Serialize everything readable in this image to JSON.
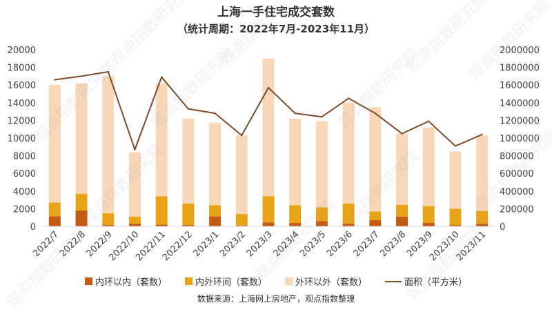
{
  "chart_data": {
    "type": "bar",
    "title": "上海一手住宅成交套数",
    "subtitle": "（统计周期：2022年7月-2023年11月）",
    "categories": [
      "2022/7",
      "2022/8",
      "2022/9",
      "2022/10",
      "2022/11",
      "2022/12",
      "2023/1",
      "2023/2",
      "2023/3",
      "2023/4",
      "2023/5",
      "2023/6",
      "2023/7",
      "2023/8",
      "2023/9",
      "2023/10",
      "2023/11"
    ],
    "stacked": true,
    "series": [
      {
        "name": "内环以内（套数）",
        "color": "#C55A11",
        "axis": "left",
        "values": [
          1150,
          1800,
          150,
          300,
          200,
          150,
          1150,
          100,
          450,
          400,
          600,
          300,
          700,
          1100,
          400,
          150,
          300
        ]
      },
      {
        "name": "内外环间（套数）",
        "color": "#E8A317",
        "axis": "left",
        "values": [
          1550,
          1900,
          1350,
          800,
          3200,
          2450,
          1250,
          1300,
          2950,
          2000,
          1550,
          2300,
          1000,
          1350,
          1900,
          1850,
          1450
        ]
      },
      {
        "name": "外环以外（套数）",
        "color": "#F7D7B8",
        "axis": "left",
        "values": [
          13300,
          12500,
          15500,
          7300,
          12800,
          9600,
          9350,
          8900,
          15600,
          9800,
          9750,
          11400,
          11800,
          8050,
          8900,
          6500,
          8550
        ]
      }
    ],
    "line": {
      "name": "面积（平方米）",
      "color": "#7B4B2A",
      "axis": "right",
      "values": [
        1660000,
        1700000,
        1750000,
        870000,
        1690000,
        1330000,
        1280000,
        1030000,
        1570000,
        1280000,
        1240000,
        1450000,
        1280000,
        1050000,
        1190000,
        910000,
        1040000
      ]
    },
    "ylim_left": [
      0,
      20000
    ],
    "yticks_left": [
      "0",
      "2000",
      "4000",
      "6000",
      "8000",
      "10000",
      "12000",
      "14000",
      "16000",
      "18000",
      "20000"
    ],
    "ylim_right": [
      0,
      2000000
    ],
    "yticks_right": [
      "0",
      "200000",
      "400000",
      "600000",
      "800000",
      "1000000",
      "1200000",
      "1400000",
      "1600000",
      "1800000",
      "2000000"
    ],
    "legend_position": "bottom",
    "grid": false
  },
  "source": "数据来源：上海网上房地产，观点指数整理",
  "watermark": "观点指数研究院"
}
